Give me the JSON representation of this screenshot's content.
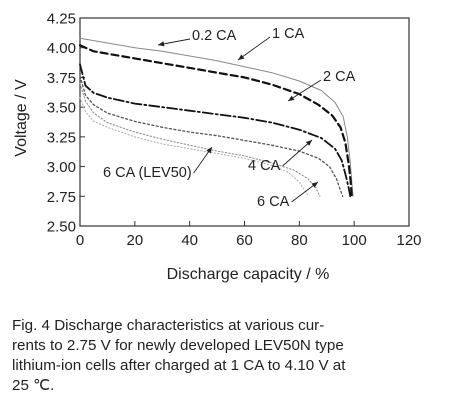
{
  "chart_data": {
    "type": "line",
    "xlabel": "Discharge capacity / %",
    "ylabel": "Voltage / V",
    "xlim": [
      0,
      120
    ],
    "ylim": [
      2.5,
      4.25
    ],
    "x_ticks": [
      "0",
      "20",
      "40",
      "60",
      "80",
      "100",
      "120"
    ],
    "y_ticks": [
      "2.50",
      "2.75",
      "3.00",
      "3.25",
      "3.50",
      "3.75",
      "4.00",
      "4.25"
    ],
    "grid": false,
    "series": [
      {
        "name": "0.2 CA",
        "style": "solid-thin",
        "color": "#888888",
        "points": [
          [
            0,
            4.08
          ],
          [
            10,
            4.04
          ],
          [
            20,
            4.0
          ],
          [
            30,
            3.97
          ],
          [
            40,
            3.93
          ],
          [
            50,
            3.89
          ],
          [
            60,
            3.84
          ],
          [
            70,
            3.79
          ],
          [
            80,
            3.72
          ],
          [
            88,
            3.64
          ],
          [
            93,
            3.54
          ],
          [
            96,
            3.42
          ],
          [
            97.5,
            3.25
          ],
          [
            98.5,
            3.05
          ],
          [
            99.2,
            2.85
          ],
          [
            99.6,
            2.75
          ]
        ]
      },
      {
        "name": "1 CA",
        "style": "dashed-bold",
        "color": "#111111",
        "points": [
          [
            0,
            4.02
          ],
          [
            5,
            3.97
          ],
          [
            10,
            3.95
          ],
          [
            20,
            3.91
          ],
          [
            30,
            3.87
          ],
          [
            40,
            3.83
          ],
          [
            50,
            3.79
          ],
          [
            60,
            3.75
          ],
          [
            70,
            3.69
          ],
          [
            80,
            3.61
          ],
          [
            87,
            3.52
          ],
          [
            92,
            3.43
          ],
          [
            95,
            3.33
          ],
          [
            96.8,
            3.2
          ],
          [
            98,
            3.02
          ],
          [
            98.7,
            2.88
          ],
          [
            99.1,
            2.75
          ]
        ]
      },
      {
        "name": "2 CA",
        "style": "dash-dot",
        "color": "#111111",
        "points": [
          [
            0,
            3.86
          ],
          [
            2,
            3.68
          ],
          [
            5,
            3.62
          ],
          [
            10,
            3.58
          ],
          [
            20,
            3.53
          ],
          [
            30,
            3.5
          ],
          [
            40,
            3.47
          ],
          [
            50,
            3.44
          ],
          [
            60,
            3.41
          ],
          [
            70,
            3.37
          ],
          [
            80,
            3.31
          ],
          [
            88,
            3.24
          ],
          [
            93,
            3.15
          ],
          [
            95.5,
            3.05
          ],
          [
            97,
            2.92
          ],
          [
            98,
            2.82
          ],
          [
            98.6,
            2.75
          ]
        ]
      },
      {
        "name": "4 CA",
        "style": "dotted",
        "color": "#555555",
        "points": [
          [
            0,
            3.76
          ],
          [
            2,
            3.6
          ],
          [
            5,
            3.52
          ],
          [
            10,
            3.45
          ],
          [
            20,
            3.38
          ],
          [
            30,
            3.33
          ],
          [
            40,
            3.29
          ],
          [
            50,
            3.26
          ],
          [
            60,
            3.22
          ],
          [
            70,
            3.18
          ],
          [
            80,
            3.13
          ],
          [
            87,
            3.07
          ],
          [
            91,
            3.0
          ],
          [
            93.5,
            2.9
          ],
          [
            95,
            2.8
          ],
          [
            95.8,
            2.75
          ]
        ]
      },
      {
        "name": "6 CA",
        "style": "dotted-fine",
        "color": "#888888",
        "points": [
          [
            0,
            3.7
          ],
          [
            2,
            3.55
          ],
          [
            5,
            3.45
          ],
          [
            10,
            3.37
          ],
          [
            20,
            3.29
          ],
          [
            30,
            3.23
          ],
          [
            40,
            3.18
          ],
          [
            50,
            3.13
          ],
          [
            60,
            3.09
          ],
          [
            70,
            3.03
          ],
          [
            78,
            2.97
          ],
          [
            83,
            2.9
          ],
          [
            86,
            2.82
          ],
          [
            87.5,
            2.75
          ]
        ]
      },
      {
        "name": "6 CA (LEV50)",
        "style": "dotted-light",
        "color": "#aaaaaa",
        "points": [
          [
            0,
            3.58
          ],
          [
            2,
            3.46
          ],
          [
            5,
            3.38
          ],
          [
            10,
            3.33
          ],
          [
            20,
            3.25
          ],
          [
            30,
            3.19
          ],
          [
            40,
            3.15
          ],
          [
            50,
            3.11
          ],
          [
            60,
            3.07
          ],
          [
            70,
            3.01
          ],
          [
            76,
            2.95
          ],
          [
            80,
            2.87
          ],
          [
            82,
            2.8
          ],
          [
            83,
            2.76
          ]
        ]
      }
    ],
    "annotations": [
      {
        "label": "0.2 CA",
        "target": "0.2 CA"
      },
      {
        "label": "1 CA",
        "target": "1 CA"
      },
      {
        "label": "2 CA",
        "target": "2 CA"
      },
      {
        "label": "4 CA",
        "target": "4 CA"
      },
      {
        "label": "6 CA",
        "target": "6 CA"
      },
      {
        "label": "6 CA (LEV50)",
        "target": "6 CA (LEV50)"
      }
    ]
  },
  "caption": {
    "line1": "Fig. 4  Discharge characteristics at various cur-",
    "line2": "rents to 2.75 V for newly developed LEV50N type",
    "line3": "lithium-ion cells after charged at 1 CA to 4.10 V at",
    "line4": "25 ℃."
  }
}
